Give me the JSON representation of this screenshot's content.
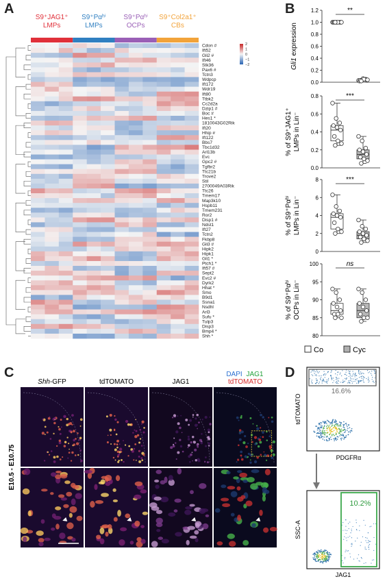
{
  "panels": {
    "a": "A",
    "b": "B",
    "c": "C",
    "d": "D"
  },
  "heatmap": {
    "groups": [
      {
        "label": "S9⁺JAG1⁺ LMPs",
        "lines": [
          "S9⁺JAG1⁺",
          "LMPs"
        ],
        "color": "#e0303a"
      },
      {
        "label": "S9⁺Pαʰⁱ LMPs",
        "lines": [
          "S9⁺Pαʰⁱ",
          "LMPs"
        ],
        "color": "#2f7fc1"
      },
      {
        "label": "S9⁺Pαʰⁱ OCPs",
        "lines": [
          "S9⁺Pαʰⁱ",
          "OCPs"
        ],
        "color": "#9a5fb6"
      },
      {
        "label": "S9⁺Col2a1⁺ CBs",
        "lines": [
          "S9⁺Col2a1⁺",
          "CBs"
        ],
        "color": "#f2a33a"
      }
    ],
    "legend_ticks": [
      "2",
      "1",
      "0",
      "−1",
      "−2"
    ],
    "genes": [
      "Cdon #",
      "Ift52",
      "Gli2 #",
      "Ift46",
      "Stk36",
      "Pax6 #",
      "Tctn3",
      "Wdpcp",
      "Ift172",
      "Wdr19",
      "Ift80",
      "Ttbk2",
      "Cc2d2a",
      "Dzip1 #",
      "Boc #",
      "Hes1 *",
      "1810043G02Rik",
      "Ift20",
      "Hhip #",
      "Ift122",
      "Bbs7",
      "Tbc1d32",
      "Arl13b",
      "Evc",
      "Gpc2 #",
      "Tgfbr2",
      "Ttc21b",
      "Trove2",
      "Stil",
      "2700049A03Rik",
      "Ttc26",
      "Tmem17",
      "Map3k10",
      "Hspb11",
      "Tmem231",
      "Ror2",
      "Disp1 #",
      "Ndst1",
      "Ift27",
      "Tctn2",
      "Fkbp8",
      "Gli3 #",
      "Hipk2",
      "Hipk1",
      "Gli1 *",
      "Ptch1 *",
      "Ift57 #",
      "Sept2",
      "Evc2 #",
      "Dyrk2",
      "Hhat *",
      "Smo",
      "B9d1",
      "Ssna1",
      "Nsdhl",
      "Arl3",
      "Sufu *",
      "Tulp3",
      "Disp3",
      "Bmp4 *",
      "Shh *"
    ]
  },
  "boxplots": [
    {
      "ylabel": "Gli1 expression",
      "ylabel_italic": "Gli1",
      "ylabel_rest": " expression",
      "yticks": [
        "1.2",
        "1.0",
        "0.8",
        "0.6",
        "0.4",
        "0.2",
        "0.0"
      ],
      "ylim": [
        0,
        1.2
      ],
      "sig": "**",
      "co": [
        1,
        1,
        1,
        1,
        1,
        1,
        1,
        1,
        1,
        1
      ],
      "cyc": [
        0.03,
        0.04,
        0.05,
        0.02,
        0.06,
        0.04,
        0.03,
        0.05,
        0.04,
        0.02
      ]
    },
    {
      "ylabel_lines": [
        "% of S9⁺JAG1⁺",
        "LMPs in Lin⁻"
      ],
      "yticks": [
        "0.8",
        "0.6",
        "0.4",
        "0.2",
        "0.0"
      ],
      "ylim": [
        0,
        0.8
      ],
      "sig": "***",
      "co": [
        0.72,
        0.55,
        0.5,
        0.47,
        0.45,
        0.42,
        0.35,
        0.3,
        0.27,
        0.25
      ],
      "cyc": [
        0.35,
        0.3,
        0.22,
        0.2,
        0.18,
        0.15,
        0.12,
        0.1,
        0.08,
        0.05
      ]
    },
    {
      "ylabel_lines": [
        "% of S9⁺Pαʰⁱ",
        "LMPs in Lin⁻"
      ],
      "yticks": [
        "8",
        "6",
        "4",
        "2",
        "0"
      ],
      "ylim": [
        0,
        8
      ],
      "sig": "***",
      "co": [
        6.3,
        5,
        4.5,
        4.2,
        4,
        3.8,
        3.2,
        2.5,
        2.2,
        2
      ],
      "cyc": [
        3.5,
        2.8,
        2.5,
        2.2,
        2,
        1.8,
        1.6,
        1.4,
        1.2,
        1
      ],
      "ns": false
    },
    {
      "ylabel_lines": [
        "% of S9⁺Pαʰⁱ",
        "OCPs in Lin⁻"
      ],
      "yticks": [
        "100",
        "95",
        "90",
        "85",
        "80"
      ],
      "ylim": [
        80,
        100
      ],
      "sig": "ns",
      "co": [
        93,
        92,
        90,
        89,
        88,
        87,
        86,
        86,
        85,
        85
      ],
      "cyc": [
        93,
        92,
        90,
        89,
        88,
        87,
        86,
        85,
        85,
        84
      ]
    }
  ],
  "legend": {
    "co": "Co",
    "cyc": "Cyc"
  },
  "micro": {
    "titles": [
      "Shh-GFP",
      "tdTOMATO",
      "JAG1"
    ],
    "title_italic": "Shh",
    "merge_title_top": [
      "DAPI",
      "JAG1"
    ],
    "merge_title_bottom": "tdTOMATO",
    "side_label": "E10.5 - E10.75"
  },
  "flow": {
    "top_gate": "16.6%",
    "top_ylabel": "tdTOMATO",
    "top_xlabel": "PDGFRα",
    "bottom_gate": "10.2%",
    "bottom_ylabel": "SSC-A",
    "bottom_xlabel": "JAG1"
  }
}
